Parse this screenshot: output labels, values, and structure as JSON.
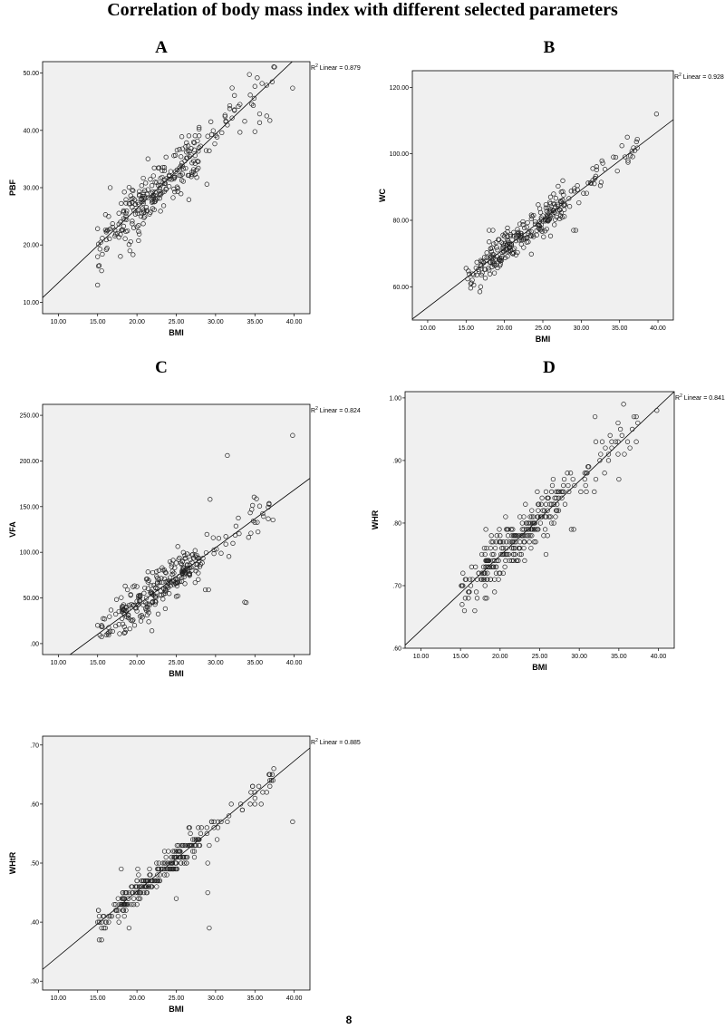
{
  "title": "Correlation of body mass index with different selected parameters",
  "footer_mark": "8",
  "chart_data": [
    {
      "type": "scatter",
      "letter": "A",
      "xlabel": "BMI",
      "ylabel": "PBF",
      "xlim": [
        8,
        42
      ],
      "ylim": [
        8,
        52
      ],
      "xticks": [
        "10.00",
        "15.00",
        "20.00",
        "25.00",
        "30.00",
        "35.00",
        "40.00"
      ],
      "yticks": [
        "10.00",
        "20.00",
        "30.00",
        "40.00",
        "50.00"
      ],
      "r2_label": "Linear = 0.879",
      "fit": {
        "x": [
          8,
          39.9
        ],
        "y": [
          10.8,
          52.2
        ]
      },
      "noise": 2.3,
      "outliers": [
        [
          16.6,
          30.0
        ],
        [
          15.0,
          13.0
        ],
        [
          15.5,
          15.5
        ],
        [
          17.9,
          18.0
        ],
        [
          19.5,
          18.3
        ],
        [
          39.8,
          47.4
        ],
        [
          35.0,
          39.8
        ],
        [
          28.9,
          30.6
        ]
      ]
    },
    {
      "type": "scatter",
      "letter": "B",
      "xlabel": "BMI",
      "ylabel": "WC",
      "xlim": [
        8,
        42
      ],
      "ylim": [
        50,
        125
      ],
      "xticks": [
        "10.00",
        "15.00",
        "20.00",
        "25.00",
        "30.00",
        "35.00",
        "40.00"
      ],
      "yticks": [
        "60.00",
        "80.00",
        "100.00",
        "120.00"
      ],
      "r2_label": "Linear = 0.928",
      "fit": {
        "x": [
          8,
          42
        ],
        "y": [
          50.3,
          110.3
        ]
      },
      "noise": 2.6,
      "outliers": [
        [
          18.0,
          77.0
        ],
        [
          18.5,
          77.0
        ],
        [
          29.0,
          77.0
        ],
        [
          29.3,
          77.0
        ],
        [
          16.8,
          58.5
        ],
        [
          39.8,
          112.0
        ],
        [
          36.0,
          105.0
        ]
      ]
    },
    {
      "type": "scatter",
      "letter": "C",
      "xlabel": "BMI",
      "ylabel": "VFA",
      "xlim": [
        8,
        42
      ],
      "ylim": [
        -12,
        262
      ],
      "xticks": [
        "10.00",
        "15.00",
        "20.00",
        "25.00",
        "30.00",
        "35.00",
        "40.00"
      ],
      "yticks": [
        ".00",
        "50.00",
        "100.00",
        "150.00",
        "200.00",
        "250.00"
      ],
      "r2_label": "Linear = 0.824",
      "fit": {
        "x": [
          11.5,
          42
        ],
        "y": [
          -12,
          181
        ]
      },
      "noise": 12,
      "outliers": [
        [
          31.5,
          206.0
        ],
        [
          39.8,
          228.0
        ],
        [
          33.9,
          45.0
        ],
        [
          33.7,
          45.5
        ],
        [
          29.3,
          158.0
        ],
        [
          28.7,
          59.0
        ],
        [
          29.1,
          59.0
        ],
        [
          18.8,
          59.0
        ],
        [
          15.0,
          20.0
        ],
        [
          15.5,
          20.0
        ]
      ]
    },
    {
      "type": "scatter",
      "letter": "D",
      "xlabel": "BMI",
      "ylabel": "WHR",
      "xlim": [
        8,
        42
      ],
      "ylim": [
        0.6,
        1.01
      ],
      "xticks": [
        "10.00",
        "15.00",
        "20.00",
        "25.00",
        "30.00",
        "35.00",
        "40.00"
      ],
      "yticks": [
        ".60",
        ".70",
        ".80",
        ".90",
        "1.00"
      ],
      "r2_label": "Linear = 0.841",
      "fit": {
        "x": [
          8,
          42
        ],
        "y": [
          0.605,
          1.01
        ]
      },
      "noise": 0.02,
      "round": 0.01,
      "outliers": [
        [
          32.0,
          0.97
        ],
        [
          35.6,
          0.99
        ],
        [
          39.8,
          0.98
        ],
        [
          35.0,
          0.87
        ],
        [
          29.0,
          0.79
        ],
        [
          29.3,
          0.79
        ],
        [
          18.2,
          0.79
        ],
        [
          19.3,
          0.69
        ],
        [
          16.8,
          0.66
        ]
      ]
    },
    {
      "type": "scatter",
      "letter": "",
      "xlabel": "BMI",
      "ylabel": "WHtR",
      "xlim": [
        8,
        42
      ],
      "ylim": [
        0.285,
        0.715
      ],
      "xticks": [
        "10.00",
        "15.00",
        "20.00",
        "25.00",
        "30.00",
        "35.00",
        "40.00"
      ],
      "yticks": [
        ".30",
        ".40",
        ".50",
        ".60",
        ".70"
      ],
      "r2_label": "Linear = 0.885",
      "fit": {
        "x": [
          8,
          42
        ],
        "y": [
          0.32,
          0.695
        ]
      },
      "noise": 0.012,
      "round": 0.01,
      "outliers": [
        [
          39.8,
          0.57
        ],
        [
          29.2,
          0.39
        ],
        [
          29.0,
          0.45
        ],
        [
          29.0,
          0.5
        ],
        [
          25.0,
          0.44
        ],
        [
          19.0,
          0.39
        ],
        [
          15.5,
          0.37
        ],
        [
          18.0,
          0.49
        ]
      ]
    }
  ]
}
